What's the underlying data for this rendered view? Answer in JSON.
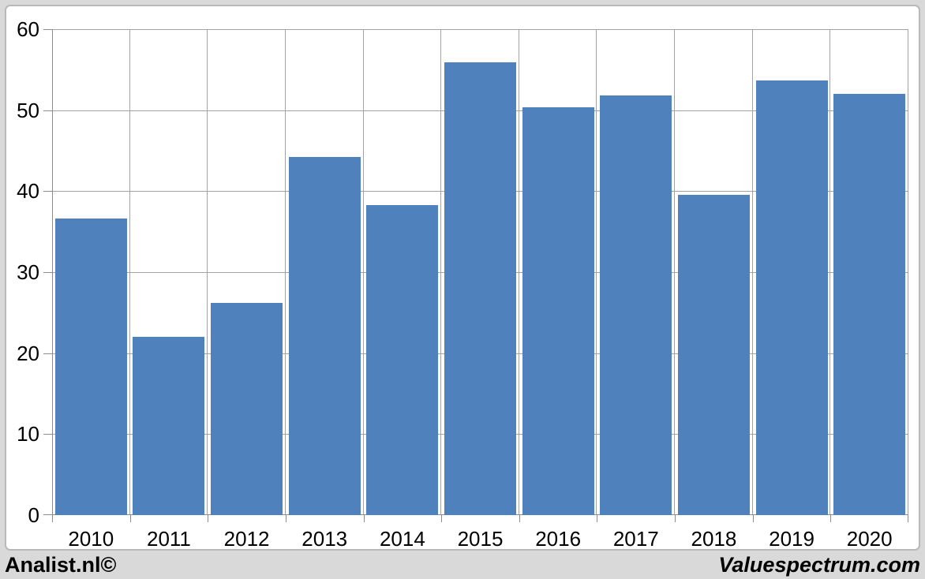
{
  "chart_data": {
    "type": "bar",
    "categories": [
      "2010",
      "2011",
      "2012",
      "2013",
      "2014",
      "2015",
      "2016",
      "2017",
      "2018",
      "2019",
      "2020"
    ],
    "values": [
      36.6,
      22.0,
      26.2,
      44.2,
      38.3,
      55.9,
      50.4,
      51.8,
      39.5,
      53.7,
      52.0
    ],
    "title": "",
    "xlabel": "",
    "ylabel": "",
    "ylim": [
      0,
      60
    ],
    "yticks": [
      0,
      10,
      20,
      30,
      40,
      50,
      60
    ],
    "grid": true,
    "legend": "none",
    "bar_color": "#4f81bd",
    "gridline_color": "#a3a3a3",
    "axis_color": "#8c8c8c",
    "tick_label_color": "#000000",
    "plot_background": "#ffffff"
  },
  "footer": {
    "left_text": "Analist.nl©",
    "right_text": "Valuespectrum.com",
    "background": "#d9d9d9"
  }
}
